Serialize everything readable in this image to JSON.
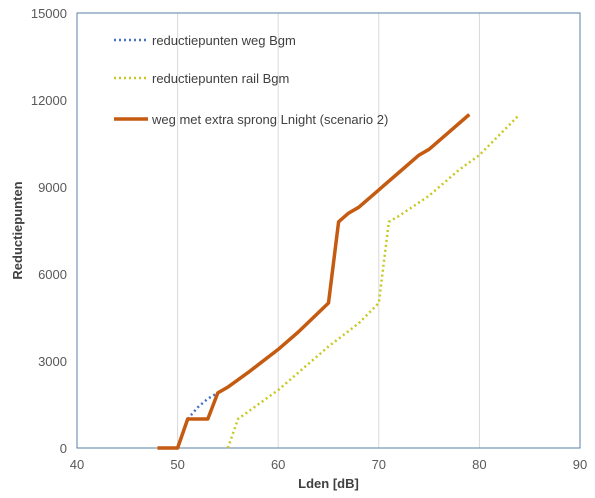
{
  "chart_data": {
    "type": "line",
    "xlabel": "Lden [dB]",
    "ylabel": "Reductiepunten",
    "xlim": [
      40,
      90
    ],
    "ylim": [
      0,
      15000
    ],
    "x_ticks": [
      "40",
      "50",
      "60",
      "70",
      "80",
      "90"
    ],
    "y_ticks": [
      "0",
      "3000",
      "6000",
      "9000",
      "12000",
      "15000"
    ],
    "grid": "vertical",
    "legend_position": "top-left",
    "series": [
      {
        "name": "reductiepunten weg Bgm",
        "style": "dotted",
        "color": "#4472c4",
        "points": [
          [
            51,
            1000
          ],
          [
            52,
            1400
          ],
          [
            53,
            1700
          ],
          [
            54,
            1900
          ]
        ]
      },
      {
        "name": "reductiepunten rail Bgm",
        "style": "dotted",
        "color": "#c8c820",
        "points": [
          [
            55,
            0
          ],
          [
            56,
            1000
          ],
          [
            60,
            2000
          ],
          [
            65,
            3500
          ],
          [
            68,
            4300
          ],
          [
            70,
            5000
          ],
          [
            71,
            7800
          ],
          [
            72,
            8000
          ],
          [
            75,
            8700
          ],
          [
            78,
            9600
          ],
          [
            80,
            10100
          ],
          [
            84,
            11500
          ]
        ]
      },
      {
        "name": "weg met extra sprong Lnight (scenario 2)",
        "style": "solid",
        "color": "#c55a11",
        "points": [
          [
            48,
            0
          ],
          [
            50,
            0
          ],
          [
            51,
            1000
          ],
          [
            53,
            1000
          ],
          [
            54,
            1900
          ],
          [
            55,
            2100
          ],
          [
            57,
            2600
          ],
          [
            60,
            3400
          ],
          [
            61,
            3700
          ],
          [
            62,
            4000
          ],
          [
            65,
            5000
          ],
          [
            66,
            7800
          ],
          [
            67,
            8100
          ],
          [
            68,
            8300
          ],
          [
            70,
            8900
          ],
          [
            72,
            9500
          ],
          [
            74,
            10100
          ],
          [
            75,
            10300
          ],
          [
            77,
            10900
          ],
          [
            79,
            11500
          ]
        ]
      }
    ]
  }
}
